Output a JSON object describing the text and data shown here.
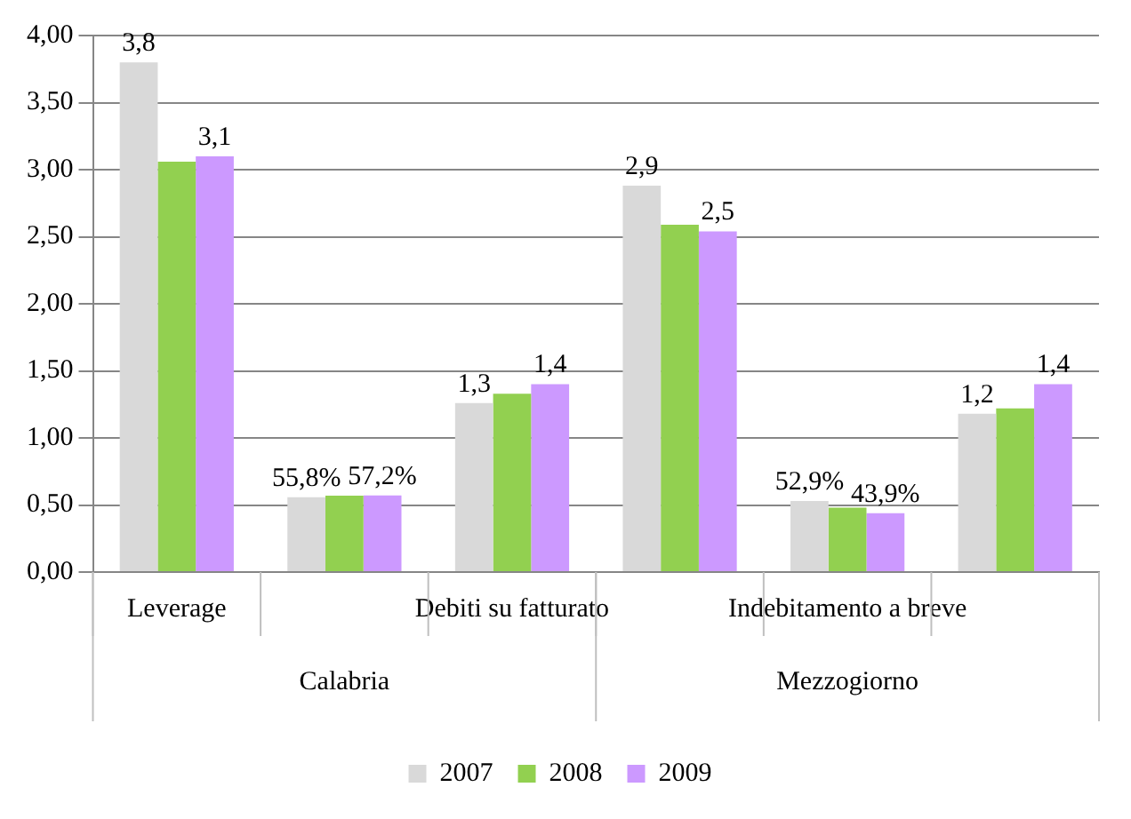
{
  "chart_data": {
    "type": "bar",
    "categories": [
      "Leverage",
      null,
      "Debiti su fatturato",
      null,
      "Indebitamento a breve",
      null
    ],
    "series": [
      {
        "name": "2007",
        "color": "#d9d9d9",
        "values": [
          3.8,
          0.558,
          1.26,
          2.88,
          0.529,
          1.18
        ],
        "value_labels": [
          "3,8",
          "55,8%",
          "1,3",
          "2,9",
          "52,9%",
          "1,2"
        ]
      },
      {
        "name": "2008",
        "color": "#92d050",
        "values": [
          3.06,
          0.57,
          1.33,
          2.59,
          0.48,
          1.22
        ],
        "value_labels": [
          null,
          null,
          null,
          null,
          null,
          null
        ]
      },
      {
        "name": "2009",
        "color": "#cc99ff",
        "values": [
          3.1,
          0.572,
          1.4,
          2.54,
          0.439,
          1.4
        ],
        "value_labels": [
          "3,1",
          "57,2%",
          "1,4",
          "2,5",
          "43,9%",
          "1,4"
        ]
      }
    ],
    "ylim": [
      0,
      4
    ],
    "yticks": [
      {
        "value": 0,
        "label": "0,00"
      },
      {
        "value": 0.5,
        "label": "0,50"
      },
      {
        "value": 1,
        "label": "1,00"
      },
      {
        "value": 1.5,
        "label": "1,50"
      },
      {
        "value": 2,
        "label": "2,00"
      },
      {
        "value": 2.5,
        "label": "2,50"
      },
      {
        "value": 3,
        "label": "3,00"
      },
      {
        "value": 3.5,
        "label": "3,50"
      },
      {
        "value": 4,
        "label": "4,00"
      }
    ],
    "grid": "y",
    "legend": "bottom",
    "annotations": [
      "Calabria",
      "Mezzogiorno"
    ]
  }
}
